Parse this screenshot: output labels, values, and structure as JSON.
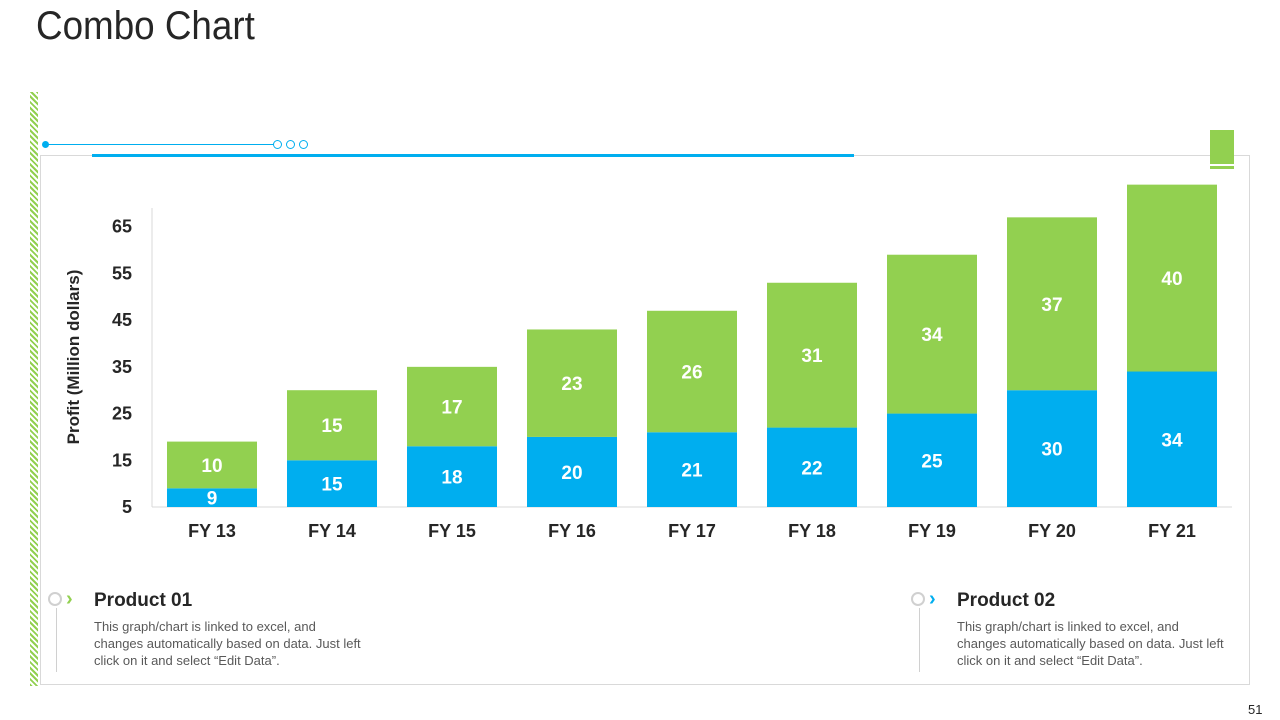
{
  "page": {
    "title": "Combo Chart",
    "number": "51"
  },
  "colors": {
    "product_01": "#92d050",
    "product_02": "#00aeef",
    "accent": "#00aeef"
  },
  "chart_data": {
    "type": "bar",
    "stacked": true,
    "categories": [
      "FY 13",
      "FY 14",
      "FY 15",
      "FY 16",
      "FY 17",
      "FY 18",
      "FY 19",
      "FY 20",
      "FY 21"
    ],
    "series": [
      {
        "name": "Product 02",
        "color": "#00aeef",
        "values": [
          9,
          15,
          18,
          20,
          21,
          22,
          25,
          30,
          34
        ]
      },
      {
        "name": "Product 01",
        "color": "#92d050",
        "values": [
          10,
          15,
          17,
          23,
          26,
          31,
          34,
          37,
          40
        ]
      }
    ],
    "ylabel": "Profit  (Million dollars)",
    "xlabel": "",
    "yticks": [
      5,
      15,
      25,
      35,
      45,
      55,
      65
    ],
    "ylim": [
      5,
      69
    ]
  },
  "legend": [
    {
      "title": "Product 01",
      "icon": "chevron-right-icon",
      "color": "#92d050",
      "description": "This graph/chart is linked to excel, and changes automatically based on data. Just left click on it and select “Edit Data”."
    },
    {
      "title": "Product 02",
      "icon": "chevron-right-icon",
      "color": "#00aeef",
      "description": "This graph/chart is linked to excel, and changes automatically based on data. Just left click on it and select “Edit Data”."
    }
  ]
}
